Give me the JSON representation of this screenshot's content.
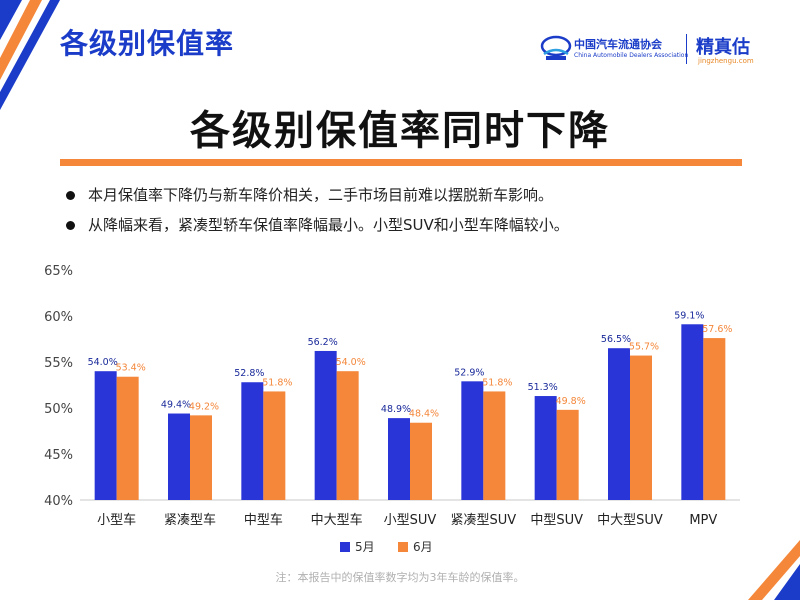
{
  "header": {
    "title": "各级别保值率"
  },
  "logos": {
    "association_name": "中国汽车流通协会",
    "association_subtitle": "China Automobile Dealers Association",
    "brand_name": "精真估",
    "brand_url": "jingzhengu.com"
  },
  "main_title": "各级别保值率同时下降",
  "bullets": [
    "本月保值率下降仍与新车降价相关，二手市场目前难以摆脱新车影响。",
    "从降幅来看，紧凑型轿车保值率降幅最小。小型SUV和小型车降幅较小。"
  ],
  "note": "注：本报告中的保值率数字均为3年车龄的保值率。",
  "colors": {
    "title_blue": "#1a3cc8",
    "series_may": "#2a35d8",
    "series_june": "#f4873a",
    "label_may": "#1a2a9a",
    "label_june": "#f4873a",
    "rule_orange": "#f4873a"
  },
  "chart_data": {
    "type": "bar",
    "categories": [
      "小型车",
      "紧凑型车",
      "中型车",
      "中大型车",
      "小型SUV",
      "紧凑型SUV",
      "中型SUV",
      "中大型SUV",
      "MPV"
    ],
    "series": [
      {
        "name": "5月",
        "values": [
          54.0,
          49.4,
          52.8,
          56.2,
          48.9,
          52.9,
          51.3,
          56.5,
          59.1
        ]
      },
      {
        "name": "6月",
        "values": [
          53.4,
          49.2,
          51.8,
          54.0,
          48.4,
          51.8,
          49.8,
          55.7,
          57.6
        ]
      }
    ],
    "y_ticks": [
      "40%",
      "45%",
      "50%",
      "55%",
      "60%",
      "65%"
    ],
    "ylim": [
      40,
      65
    ],
    "unit": "%",
    "legend_position": "bottom-center",
    "grid": false
  }
}
